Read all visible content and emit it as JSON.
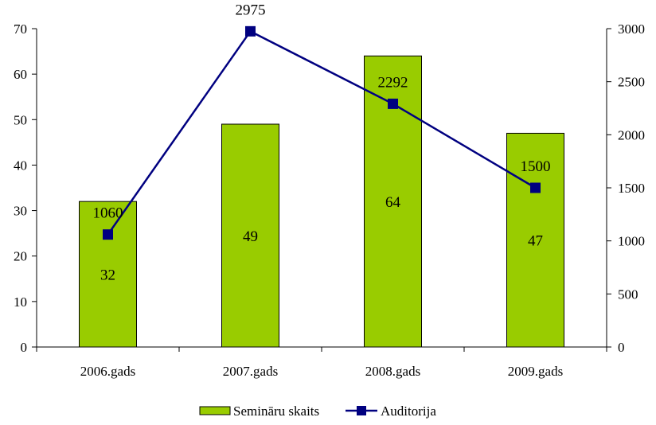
{
  "chart_data": {
    "type": "bar",
    "categories": [
      "2006.gads",
      "2007.gads",
      "2008.gads",
      "2009.gads"
    ],
    "series": [
      {
        "name": "Semināru skaits",
        "type": "bar",
        "axis": "left",
        "values": [
          32,
          49,
          64,
          47
        ],
        "color": "#99cc00"
      },
      {
        "name": "Auditorija",
        "type": "line",
        "axis": "right",
        "values": [
          1060,
          2975,
          2292,
          1500
        ],
        "color": "#000080"
      }
    ],
    "y_left": {
      "range": [
        0,
        70
      ],
      "ticks": [
        0,
        10,
        20,
        30,
        40,
        50,
        60,
        70
      ]
    },
    "y_right": {
      "range": [
        0,
        3000
      ],
      "ticks": [
        0,
        500,
        1000,
        1500,
        2000,
        2500,
        3000
      ]
    },
    "grid": false,
    "legend_position": "bottom"
  }
}
